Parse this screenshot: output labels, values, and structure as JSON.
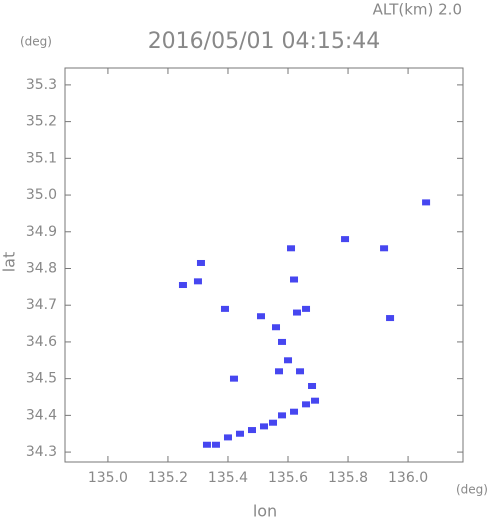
{
  "chart_data": {
    "type": "scatter",
    "title": "2016/05/01 04:15:44",
    "subtitle": "ALT(km) 2.0",
    "y_unit": "(deg)",
    "x_unit": "(deg)",
    "x_label": "lon",
    "y_label": "lat",
    "x": [
      135.25,
      135.3,
      135.31,
      135.39,
      135.42,
      135.61,
      135.62,
      135.79,
      135.92,
      135.94,
      136.06,
      135.51,
      135.56,
      135.63,
      135.66,
      135.58,
      135.6,
      135.57,
      135.64,
      135.68,
      135.69,
      135.66,
      135.62,
      135.58,
      135.55,
      135.52,
      135.48,
      135.44,
      135.4,
      135.36,
      135.33
    ],
    "y": [
      34.755,
      34.765,
      34.815,
      34.69,
      34.5,
      34.855,
      34.77,
      34.88,
      34.855,
      34.665,
      34.98,
      34.67,
      34.64,
      34.68,
      34.69,
      34.6,
      34.55,
      34.52,
      34.52,
      34.48,
      34.44,
      34.43,
      34.41,
      34.4,
      34.38,
      34.37,
      34.36,
      34.35,
      34.34,
      34.32,
      34.32
    ],
    "color": "#4646f0",
    "xlim": [
      134.857,
      136.183
    ],
    "ylim": [
      34.273,
      35.346
    ],
    "xticks": [
      {
        "value": 135.0,
        "label": "135.0"
      },
      135.2,
      135.4,
      135.6,
      135.8,
      {
        "value": 136.0,
        "label": "136.0"
      }
    ],
    "yticks": [
      34.3,
      34.4,
      34.5,
      34.6,
      34.7,
      34.8,
      34.9,
      {
        "value": 35.0,
        "label": "35.0"
      },
      35.1,
      35.2,
      35.3
    ]
  }
}
